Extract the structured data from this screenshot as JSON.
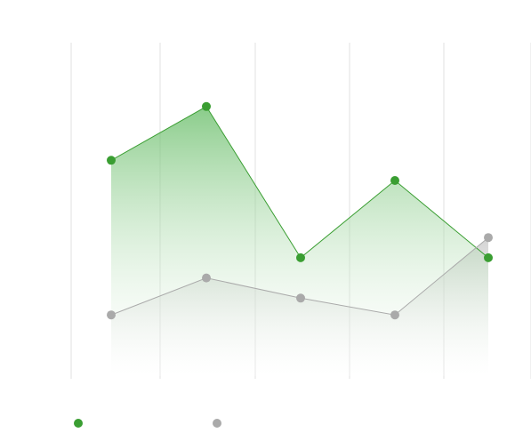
{
  "chart_data": {
    "type": "area",
    "title": "",
    "xlabel": "",
    "ylabel": "",
    "categories": [
      "",
      "",
      "",
      "",
      ""
    ],
    "ylim": [
      0,
      100
    ],
    "grid": {
      "vertical": true,
      "horizontal": false
    },
    "legend": "bottom-left",
    "series": [
      {
        "name": "",
        "color": "#3a9e32",
        "values": [
          65,
          81,
          36,
          59,
          36
        ]
      },
      {
        "name": "",
        "color": "#aaaaaa",
        "values": [
          19,
          30,
          24,
          19,
          42
        ]
      }
    ]
  }
}
